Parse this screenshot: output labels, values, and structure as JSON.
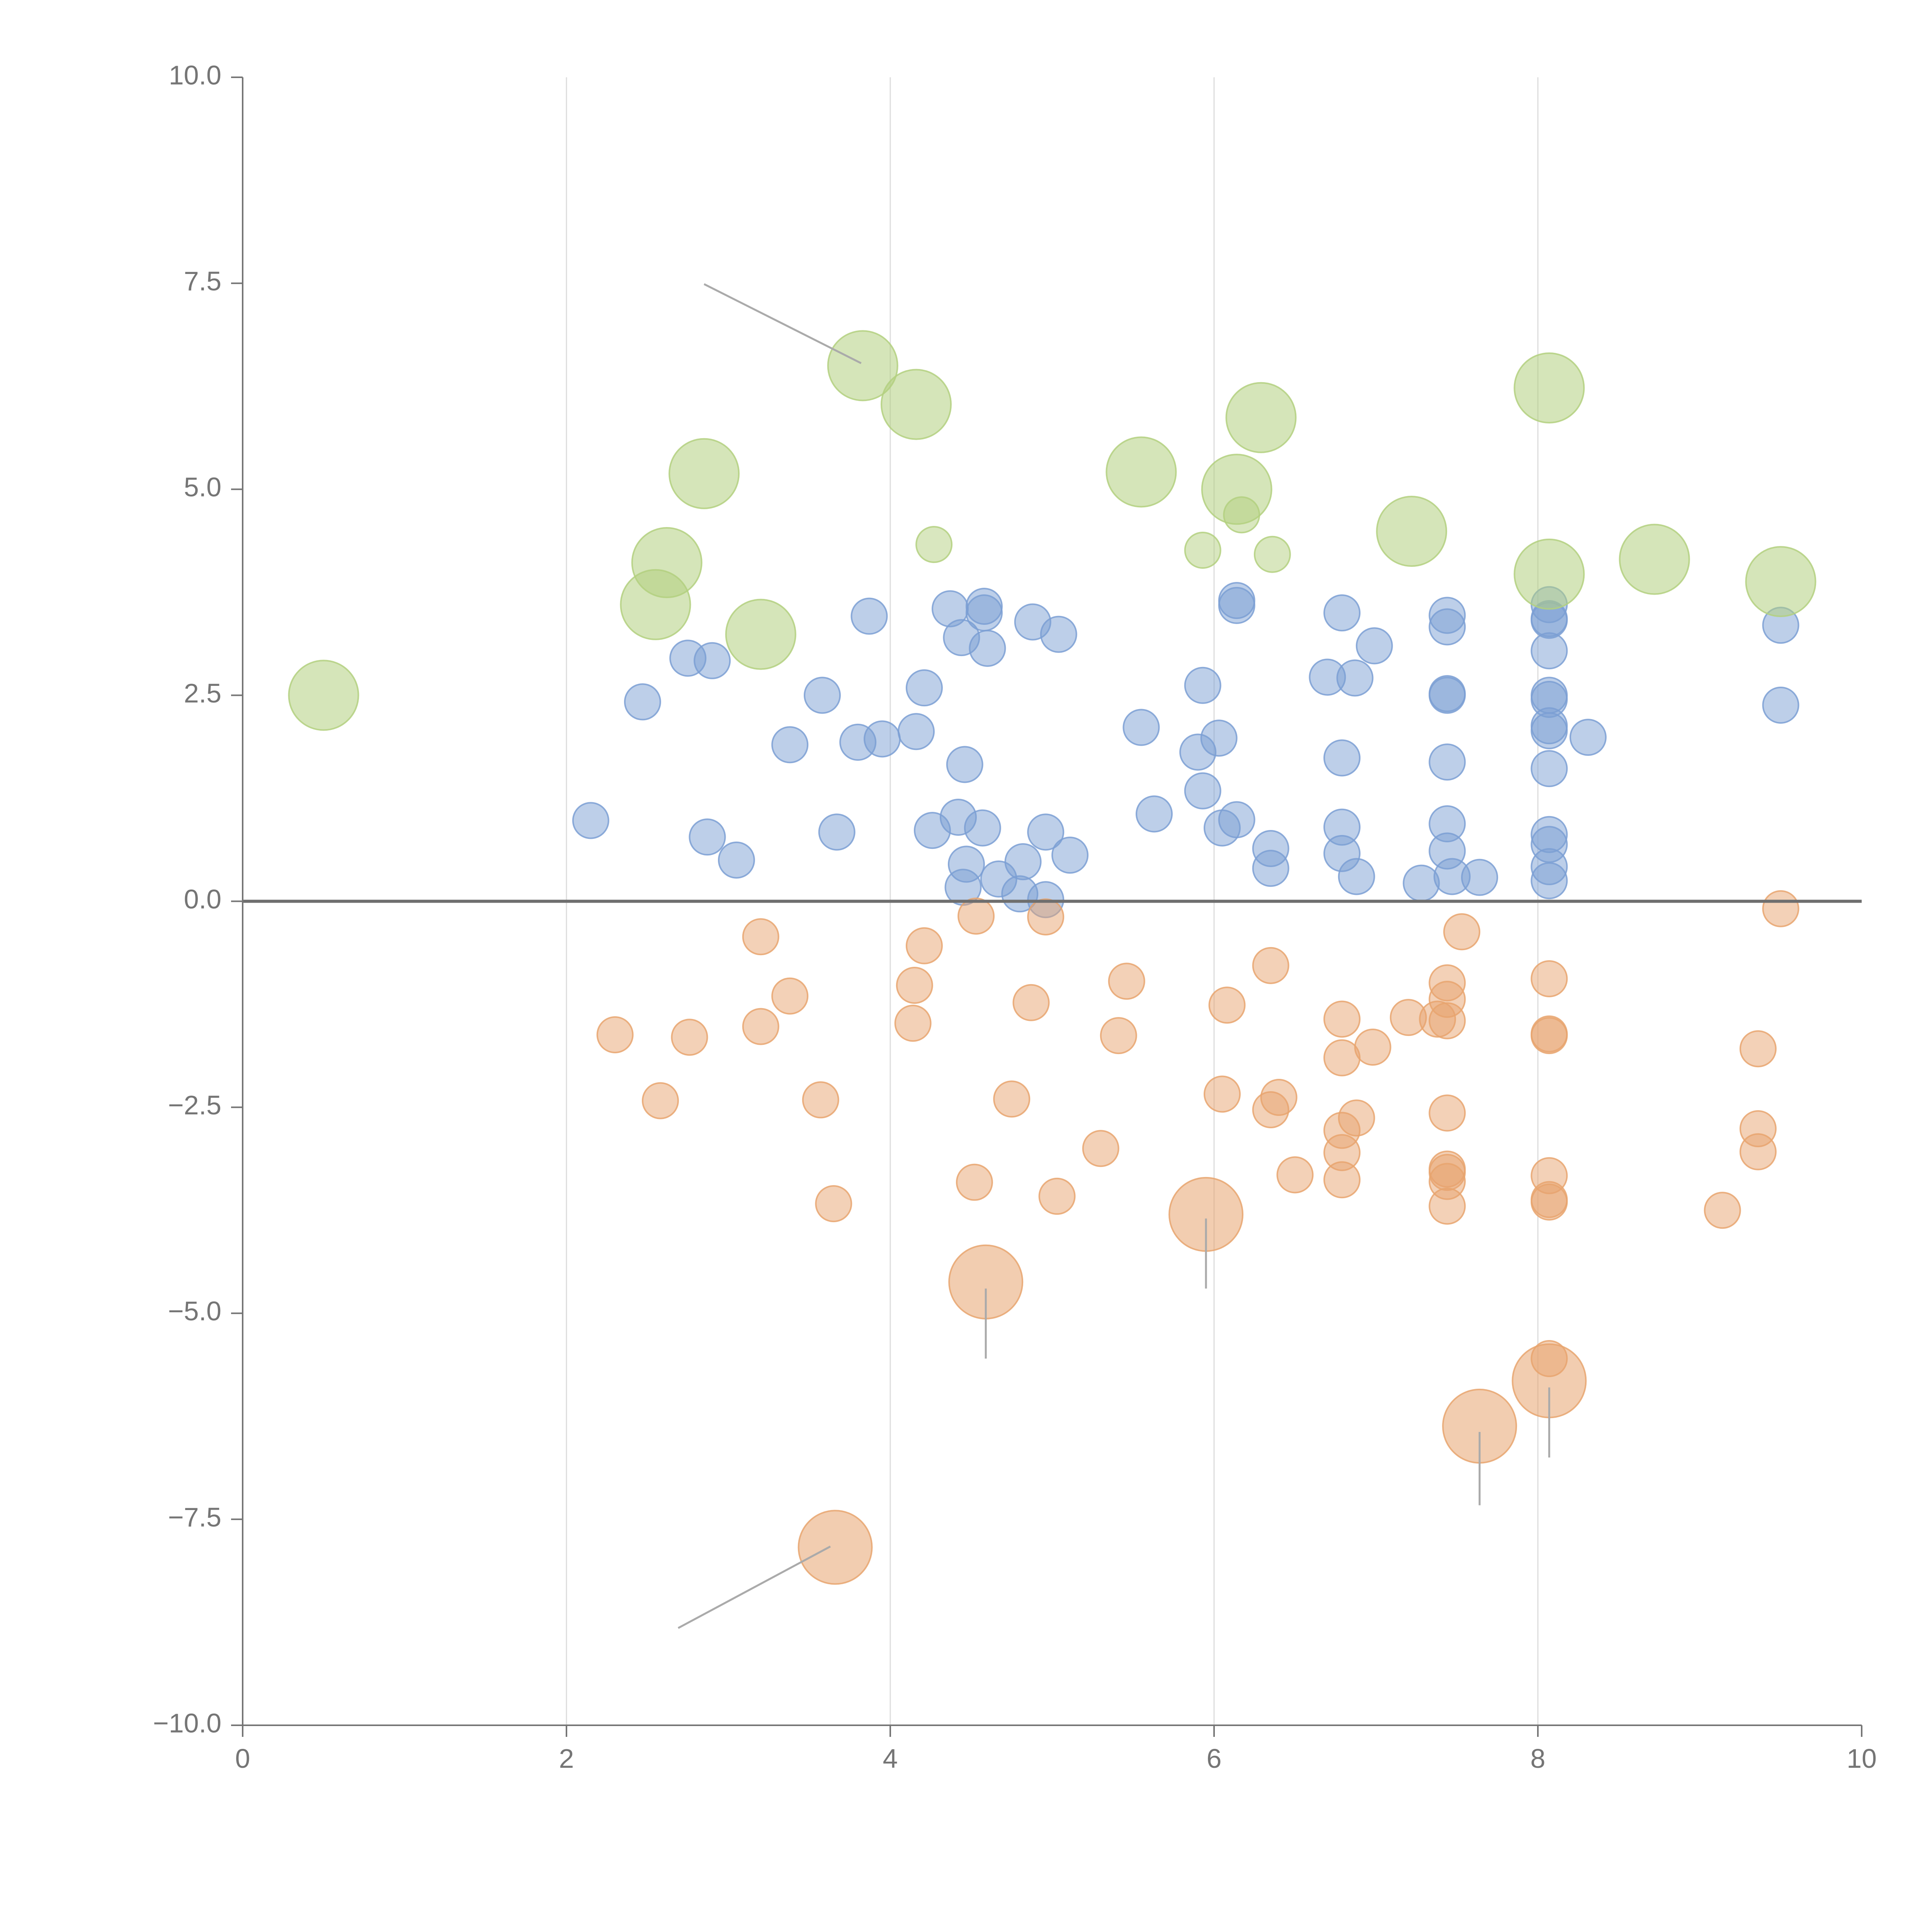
{
  "chart_data": {
    "type": "scatter",
    "title": "",
    "xlabel": "",
    "ylabel": "",
    "xlim": [
      0,
      10
    ],
    "ylim": [
      -10,
      10
    ],
    "x_ticks": [
      0,
      2,
      4,
      6,
      8,
      10
    ],
    "x_tick_labels": [
      "0",
      "2",
      "4",
      "6",
      "8",
      "10"
    ],
    "y_ticks": [
      -10,
      -7.5,
      -5,
      -2.5,
      0,
      2.5,
      5,
      7.5,
      10
    ],
    "y_tick_labels": [
      "−10.0",
      "−7.5",
      "−5.0",
      "−2.5",
      "0.0",
      "2.5",
      "5.0",
      "7.5",
      "10.0"
    ],
    "vertical_grid_at": [
      2,
      4,
      6,
      8
    ],
    "zero_line": 0,
    "colors": {
      "blue": "#7b9fd4",
      "orange": "#e8a46f",
      "green": "#b3d07f",
      "axis": "#757575",
      "grid": "#dcdcdc",
      "zero_line": "#6e6e6e",
      "leader_line": "#aaaaaa"
    },
    "series": [
      {
        "name": "blue",
        "color": "#7b9fd4",
        "points": [
          [
            2.15,
            0.98
          ],
          [
            2.47,
            2.42
          ],
          [
            2.75,
            2.95
          ],
          [
            2.87,
            0.78
          ],
          [
            2.9,
            2.92
          ],
          [
            3.05,
            0.5
          ],
          [
            3.38,
            1.9
          ],
          [
            3.58,
            2.5
          ],
          [
            3.67,
            0.84
          ],
          [
            3.8,
            1.93
          ],
          [
            3.87,
            3.46
          ],
          [
            3.95,
            1.97
          ],
          [
            4.16,
            2.06
          ],
          [
            4.21,
            2.59
          ],
          [
            4.26,
            0.86
          ],
          [
            4.37,
            3.55
          ],
          [
            4.42,
            1.02
          ],
          [
            4.44,
            3.2
          ],
          [
            4.45,
            0.17
          ],
          [
            4.46,
            1.66
          ],
          [
            4.47,
            0.45
          ],
          [
            4.57,
            0.89
          ],
          [
            4.58,
            3.5
          ],
          [
            4.58,
            3.58
          ],
          [
            4.6,
            3.07
          ],
          [
            4.67,
            0.27
          ],
          [
            4.8,
            0.09
          ],
          [
            4.82,
            0.48
          ],
          [
            4.88,
            3.39
          ],
          [
            4.96,
            0.84
          ],
          [
            4.96,
            0.02
          ],
          [
            5.04,
            3.24
          ],
          [
            5.11,
            0.56
          ],
          [
            5.55,
            2.11
          ],
          [
            5.63,
            1.06
          ],
          [
            5.9,
            1.81
          ],
          [
            5.93,
            1.34
          ],
          [
            5.93,
            2.62
          ],
          [
            6.03,
            1.98
          ],
          [
            6.05,
            0.89
          ],
          [
            6.14,
            0.99
          ],
          [
            6.14,
            3.59
          ],
          [
            6.14,
            3.65
          ],
          [
            6.35,
            0.64
          ],
          [
            6.35,
            0.4
          ],
          [
            6.7,
            2.72
          ],
          [
            6.79,
            3.5
          ],
          [
            6.79,
            1.74
          ],
          [
            6.79,
            0.9
          ],
          [
            6.79,
            0.58
          ],
          [
            6.87,
            2.71
          ],
          [
            6.88,
            0.3
          ],
          [
            6.99,
            3.1
          ],
          [
            7.28,
            0.22
          ],
          [
            7.44,
            3.47
          ],
          [
            7.44,
            3.33
          ],
          [
            7.44,
            2.52
          ],
          [
            7.44,
            2.5
          ],
          [
            7.44,
            1.69
          ],
          [
            7.44,
            0.94
          ],
          [
            7.44,
            0.61
          ],
          [
            7.47,
            0.3
          ],
          [
            7.64,
            0.29
          ],
          [
            8.07,
            3.6
          ],
          [
            8.07,
            3.43
          ],
          [
            8.07,
            3.41
          ],
          [
            8.07,
            3.04
          ],
          [
            8.07,
            2.5
          ],
          [
            8.07,
            2.45
          ],
          [
            8.07,
            2.13
          ],
          [
            8.07,
            2.07
          ],
          [
            8.07,
            1.61
          ],
          [
            8.07,
            0.81
          ],
          [
            8.07,
            0.69
          ],
          [
            8.07,
            0.42
          ],
          [
            8.07,
            0.25
          ],
          [
            8.31,
            1.99
          ],
          [
            9.5,
            3.35
          ],
          [
            9.5,
            2.38
          ]
        ]
      },
      {
        "name": "orange",
        "color": "#e8a46f",
        "points": [
          [
            2.3,
            -1.62
          ],
          [
            2.58,
            -2.42
          ],
          [
            2.76,
            -1.65
          ],
          [
            3.2,
            -0.43
          ],
          [
            3.2,
            -1.52
          ],
          [
            3.38,
            -1.15
          ],
          [
            3.57,
            -2.41
          ],
          [
            3.65,
            -3.67
          ],
          [
            4.14,
            -1.48
          ],
          [
            4.15,
            -1.02
          ],
          [
            4.21,
            -0.54
          ],
          [
            4.52,
            -3.41
          ],
          [
            4.53,
            -0.18
          ],
          [
            4.75,
            -2.4
          ],
          [
            4.87,
            -1.23
          ],
          [
            4.96,
            -0.19
          ],
          [
            5.03,
            -3.58
          ],
          [
            5.3,
            -3.0
          ],
          [
            5.41,
            -1.63
          ],
          [
            5.46,
            -0.97
          ],
          [
            6.05,
            -2.34
          ],
          [
            6.08,
            -1.26
          ],
          [
            6.35,
            -0.78
          ],
          [
            6.35,
            -2.53
          ],
          [
            6.4,
            -2.38
          ],
          [
            6.5,
            -3.32
          ],
          [
            6.79,
            -1.43
          ],
          [
            6.79,
            -1.9
          ],
          [
            6.79,
            -2.78
          ],
          [
            6.79,
            -3.05
          ],
          [
            6.79,
            -3.38
          ],
          [
            6.88,
            -2.63
          ],
          [
            6.98,
            -1.77
          ],
          [
            7.2,
            -1.41
          ],
          [
            7.38,
            -1.43
          ],
          [
            7.44,
            -0.99
          ],
          [
            7.44,
            -1.19
          ],
          [
            7.44,
            -1.45
          ],
          [
            7.44,
            -2.57
          ],
          [
            7.44,
            -3.25
          ],
          [
            7.44,
            -3.29
          ],
          [
            7.44,
            -3.4
          ],
          [
            7.44,
            -3.7
          ],
          [
            7.53,
            -0.37
          ],
          [
            8.07,
            -0.94
          ],
          [
            8.07,
            -1.61
          ],
          [
            8.07,
            -1.63
          ],
          [
            8.07,
            -3.33
          ],
          [
            8.07,
            -3.62
          ],
          [
            8.07,
            -3.65
          ],
          [
            8.07,
            -5.55
          ],
          [
            9.14,
            -3.75
          ],
          [
            9.36,
            -1.79
          ],
          [
            9.36,
            -2.76
          ],
          [
            9.36,
            -3.04
          ],
          [
            9.5,
            -0.09
          ]
        ],
        "large_points": [
          [
            4.59,
            -4.62
          ],
          [
            5.95,
            -3.8
          ],
          [
            7.64,
            -6.37
          ],
          [
            8.07,
            -5.82
          ],
          [
            3.66,
            -7.84
          ]
        ]
      },
      {
        "name": "green",
        "color": "#b3d07f",
        "points": [
          [
            4.27,
            4.33
          ],
          [
            5.93,
            4.26
          ],
          [
            6.17,
            4.69
          ],
          [
            6.36,
            4.21
          ]
        ],
        "large_points": [
          [
            0.5,
            2.5
          ],
          [
            2.55,
            3.6
          ],
          [
            2.62,
            4.11
          ],
          [
            2.85,
            5.19
          ],
          [
            3.2,
            3.24
          ],
          [
            3.83,
            6.5
          ],
          [
            4.16,
            6.03
          ],
          [
            5.55,
            5.21
          ],
          [
            6.14,
            5.0
          ],
          [
            6.29,
            5.87
          ],
          [
            7.22,
            4.49
          ],
          [
            8.07,
            6.23
          ],
          [
            8.07,
            3.97
          ],
          [
            8.72,
            4.15
          ],
          [
            9.5,
            3.88
          ]
        ]
      }
    ],
    "leader_lines": [
      {
        "from": [
          3.82,
          6.53
        ],
        "to": [
          2.85,
          7.49
        ]
      },
      {
        "from": [
          3.63,
          -7.83
        ],
        "to": [
          2.69,
          -8.82
        ]
      },
      {
        "from": [
          4.59,
          -4.7
        ],
        "to": [
          4.59,
          -5.55
        ]
      },
      {
        "from": [
          5.95,
          -3.85
        ],
        "to": [
          5.95,
          -4.7
        ]
      },
      {
        "from": [
          7.64,
          -6.44
        ],
        "to": [
          7.64,
          -7.33
        ]
      },
      {
        "from": [
          8.07,
          -5.9
        ],
        "to": [
          8.07,
          -6.75
        ]
      }
    ]
  }
}
